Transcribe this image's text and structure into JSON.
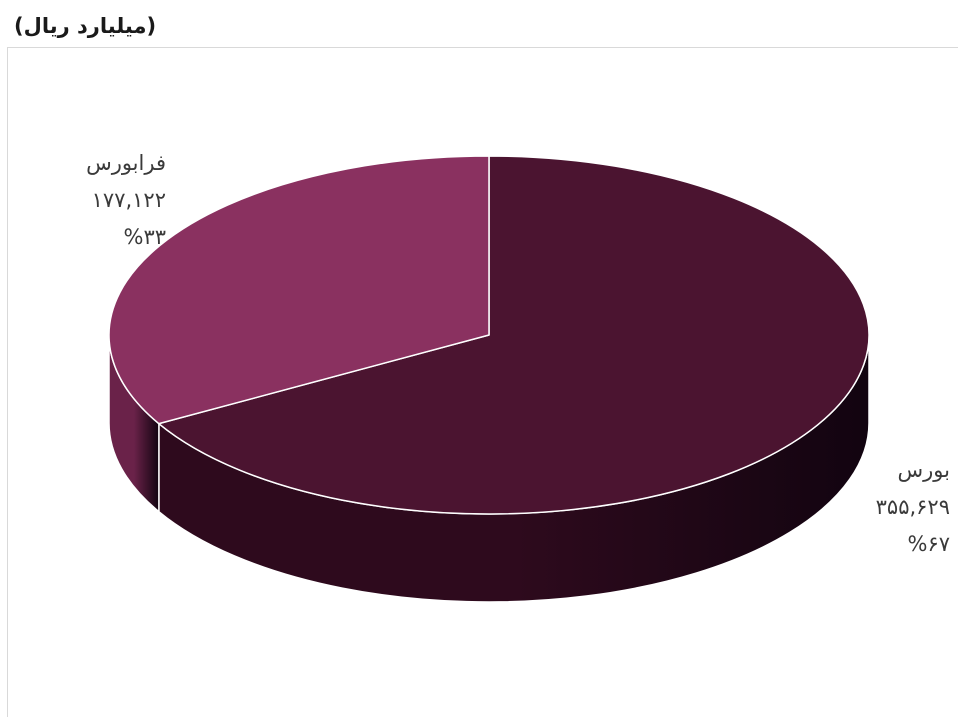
{
  "unit_title": "(میلیارد ریال)",
  "chart_data": {
    "type": "pie",
    "title": "",
    "slices": [
      {
        "name": "بورس",
        "value": 355629,
        "value_label": "۳۵۵,۶۲۹",
        "percent_label": "%۶۷",
        "color": "#4b1430",
        "side_color": "#2e0a1d"
      },
      {
        "name": "فرابورس",
        "value": 177122,
        "value_label": "۱۷۷,۱۲۲",
        "percent_label": "%۳۳",
        "color": "#8a3160",
        "side_color": "#6a2249"
      }
    ],
    "style": "3d"
  }
}
